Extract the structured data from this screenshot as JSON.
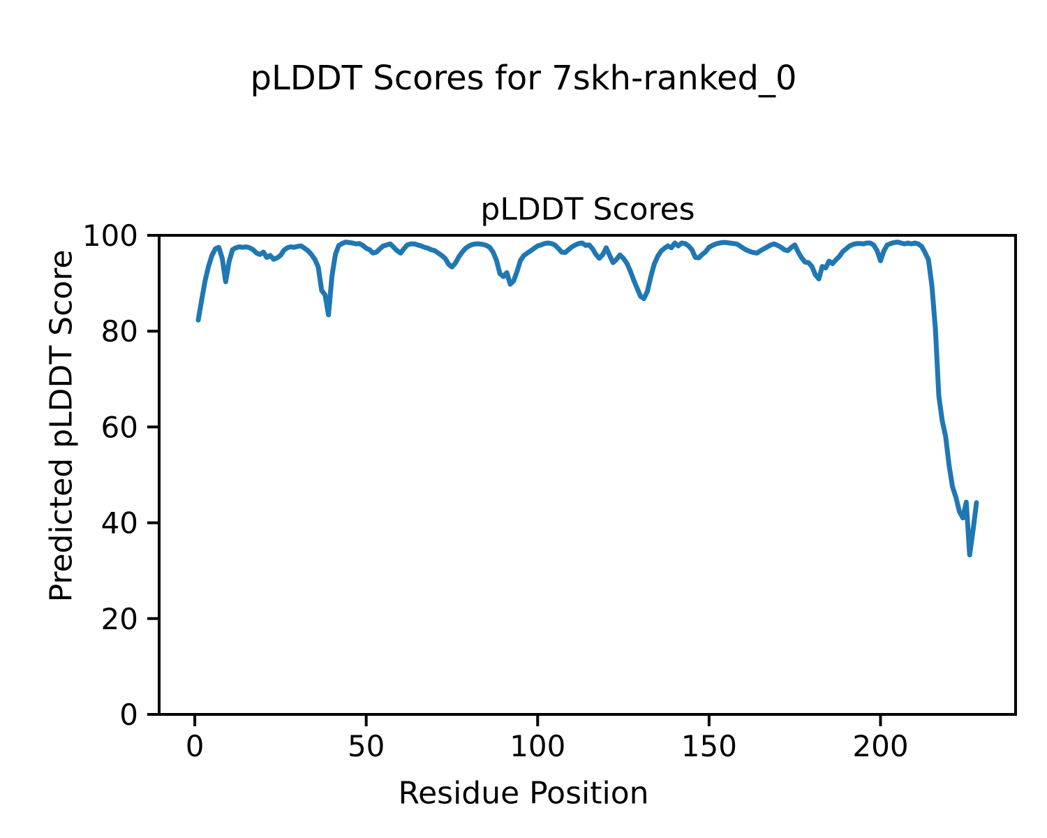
{
  "figure": {
    "suptitle": "pLDDT Scores for 7skh-ranked_0",
    "background": "#ffffff",
    "text_color": "#000000"
  },
  "chart_data": {
    "type": "line",
    "suptitle": "pLDDT Scores for 7skh-ranked_0",
    "title": "pLDDT Scores",
    "xlabel": "Residue Position",
    "ylabel": "Predicted pLDDT Score",
    "line_color": "#1f77b4",
    "axes_color": "#000000",
    "grid": false,
    "legend": "none",
    "xlim": [
      -10.4,
      239.4
    ],
    "ylim": [
      0,
      100
    ],
    "xticks": [
      0,
      50,
      100,
      150,
      200
    ],
    "yticks": [
      0,
      20,
      40,
      60,
      80,
      100
    ],
    "x_start": 1,
    "x_step": 1,
    "values": [
      82.3,
      86.5,
      90.5,
      93.5,
      95.8,
      97.2,
      97.5,
      95.2,
      90.3,
      94.5,
      97.0,
      97.4,
      97.6,
      97.5,
      97.6,
      97.4,
      97.0,
      96.3,
      96.0,
      96.5,
      95.4,
      95.8,
      95.0,
      95.3,
      95.8,
      96.9,
      97.4,
      97.6,
      97.5,
      97.7,
      97.8,
      97.3,
      96.8,
      96.0,
      95.0,
      93.4,
      88.5,
      87.6,
      83.4,
      91.5,
      96.0,
      97.9,
      98.3,
      98.6,
      98.5,
      98.4,
      98.2,
      98.3,
      97.9,
      97.3,
      97.0,
      96.3,
      96.5,
      97.2,
      97.8,
      98.0,
      98.2,
      97.5,
      96.8,
      96.3,
      97.2,
      98.0,
      98.2,
      98.2,
      98.0,
      97.8,
      97.5,
      97.3,
      97.0,
      96.8,
      96.3,
      95.8,
      95.2,
      94.0,
      93.4,
      94.2,
      95.5,
      96.5,
      97.3,
      97.8,
      98.1,
      98.2,
      98.2,
      98.1,
      97.9,
      97.5,
      96.5,
      94.8,
      92.0,
      91.4,
      92.2,
      89.8,
      90.5,
      92.5,
      94.8,
      95.8,
      96.3,
      96.8,
      97.3,
      97.8,
      98.0,
      98.3,
      98.4,
      98.3,
      98.0,
      97.3,
      96.5,
      96.4,
      97.0,
      97.6,
      98.0,
      98.3,
      98.4,
      97.9,
      98.0,
      97.2,
      96.0,
      95.2,
      96.0,
      97.4,
      95.8,
      94.3,
      95.0,
      95.9,
      95.2,
      94.2,
      92.6,
      90.7,
      89.0,
      87.3,
      86.8,
      88.3,
      91.4,
      94.0,
      95.6,
      96.7,
      97.3,
      97.8,
      97.4,
      98.4,
      97.8,
      98.4,
      98.3,
      97.8,
      97.0,
      95.4,
      95.3,
      96.0,
      96.6,
      97.5,
      97.9,
      98.2,
      98.4,
      98.5,
      98.5,
      98.4,
      98.3,
      98.2,
      97.8,
      97.3,
      96.9,
      96.6,
      96.4,
      96.3,
      96.8,
      97.2,
      97.6,
      98.0,
      98.2,
      97.9,
      97.5,
      97.0,
      96.8,
      97.5,
      98.0,
      96.5,
      95.3,
      94.4,
      94.3,
      93.5,
      91.8,
      90.9,
      93.5,
      93.2,
      94.6,
      94.1,
      94.9,
      95.6,
      96.6,
      97.2,
      97.8,
      98.1,
      98.3,
      98.3,
      98.2,
      98.4,
      98.4,
      98.0,
      96.8,
      94.7,
      96.8,
      98.0,
      98.3,
      98.5,
      98.6,
      98.4,
      98.2,
      98.4,
      98.2,
      98.4,
      98.2,
      97.7,
      96.4,
      94.9,
      89.5,
      80.5,
      66.5,
      61.3,
      58.0,
      52.0,
      47.5,
      45.3,
      42.4,
      41.0,
      44.3,
      33.3,
      38.5,
      44.2
    ]
  }
}
